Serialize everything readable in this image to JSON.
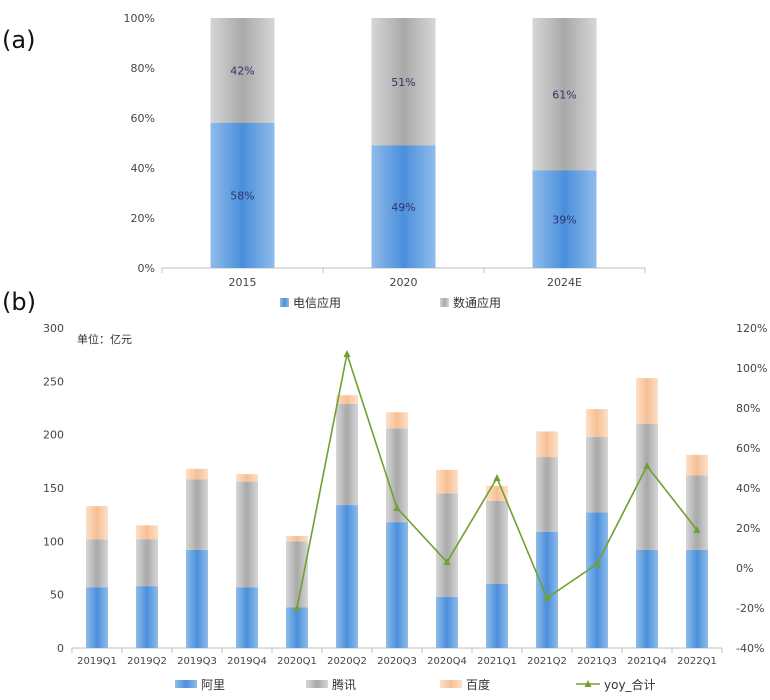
{
  "panel_labels": {
    "a": "(a)",
    "b": "(b)"
  },
  "chart_data": [
    {
      "type": "bar",
      "stacked": true,
      "percent": true,
      "categories": [
        "2015",
        "2020",
        "2024E"
      ],
      "series": [
        {
          "name": "电信应用",
          "values": [
            58,
            49,
            39
          ],
          "labels": [
            "58%",
            "49%",
            "39%"
          ],
          "color": "#5b9bd5"
        },
        {
          "name": "数通应用",
          "values": [
            42,
            51,
            61
          ],
          "labels": [
            "42%",
            "51%",
            "61%"
          ],
          "color": "#b4b4b4"
        }
      ],
      "yticks": [
        "0%",
        "20%",
        "40%",
        "60%",
        "80%",
        "100%"
      ],
      "ylim": [
        0,
        100
      ],
      "legend": "bottom"
    },
    {
      "type": "bar",
      "stacked": true,
      "unit": "单位：亿元",
      "categories": [
        "2019Q1",
        "2019Q2",
        "2019Q3",
        "2019Q4",
        "2020Q1",
        "2020Q2",
        "2020Q3",
        "2020Q4",
        "2021Q1",
        "2021Q2",
        "2021Q3",
        "2021Q4",
        "2022Q1"
      ],
      "series": [
        {
          "name": "阿里",
          "values": [
            57,
            58,
            92,
            57,
            38,
            134,
            118,
            48,
            60,
            109,
            127,
            92,
            92
          ],
          "color": "#5b9bd5"
        },
        {
          "name": "腾讯",
          "values": [
            45,
            44,
            66,
            99,
            62,
            95,
            88,
            97,
            78,
            70,
            71,
            118,
            70
          ],
          "color": "#b4b4b4"
        },
        {
          "name": "百度",
          "values": [
            31,
            13,
            10,
            7,
            5,
            8,
            15,
            22,
            14,
            24,
            26,
            43,
            19
          ],
          "color": "#f8c9a2"
        }
      ],
      "line": {
        "name": "yoy_合计",
        "axis": "right",
        "values": [
          null,
          null,
          null,
          null,
          -20,
          107,
          30,
          3,
          45,
          -15,
          2,
          51,
          19
        ],
        "color": "#70a030"
      },
      "yticks_left": [
        "0",
        "50",
        "100",
        "150",
        "200",
        "250",
        "300"
      ],
      "ylim_left": [
        0,
        300
      ],
      "yticks_right": [
        "-40%",
        "-20%",
        "0%",
        "20%",
        "40%",
        "60%",
        "80%",
        "100%",
        "120%"
      ],
      "ylim_right": [
        -40,
        120
      ],
      "legend": "bottom"
    }
  ]
}
